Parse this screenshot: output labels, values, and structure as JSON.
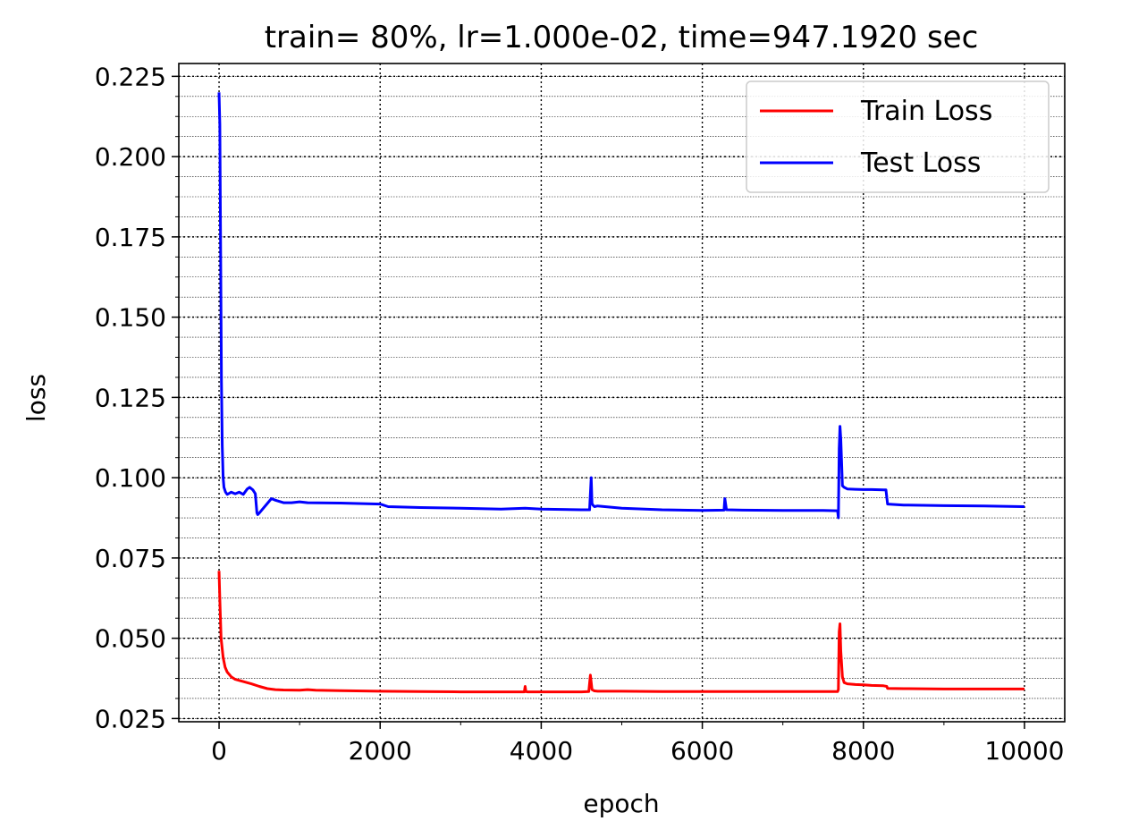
{
  "chart_data": {
    "type": "line",
    "title": "train= 80%, lr=1.000e-02, time=947.1920 sec",
    "xlabel": "epoch",
    "ylabel": "loss",
    "xlim": [
      -500,
      10500
    ],
    "ylim": [
      0.024,
      0.229
    ],
    "x_ticks": [
      0,
      2000,
      4000,
      6000,
      8000,
      10000
    ],
    "x_tick_labels": [
      "0",
      "2000",
      "4000",
      "6000",
      "8000",
      "10000"
    ],
    "y_ticks": [
      0.025,
      0.05,
      0.075,
      0.1,
      0.125,
      0.15,
      0.175,
      0.2,
      0.225
    ],
    "y_tick_labels": [
      "0.025",
      "0.050",
      "0.075",
      "0.100",
      "0.125",
      "0.150",
      "0.175",
      "0.200",
      "0.225"
    ],
    "grid": true,
    "minor_grid": true,
    "legend_position": "top-right",
    "series": [
      {
        "name": "Train Loss",
        "color": "#ff0000",
        "x": [
          0,
          10,
          25,
          50,
          75,
          100,
          150,
          200,
          300,
          400,
          500,
          600,
          700,
          800,
          1000,
          1100,
          1200,
          1500,
          2000,
          2500,
          3000,
          3500,
          3790,
          3800,
          3810,
          3830,
          4000,
          4500,
          4590,
          4610,
          4630,
          4660,
          4700,
          5000,
          5500,
          6000,
          6500,
          7000,
          7500,
          7680,
          7690,
          7700,
          7710,
          7720,
          7740,
          7760,
          7800,
          7900,
          8000,
          8100,
          8250,
          8290,
          8300,
          8500,
          9000,
          9500,
          10000
        ],
        "y": [
          0.071,
          0.062,
          0.05,
          0.044,
          0.041,
          0.0395,
          0.038,
          0.0372,
          0.0365,
          0.0358,
          0.035,
          0.0343,
          0.034,
          0.0339,
          0.0338,
          0.034,
          0.0338,
          0.0337,
          0.0335,
          0.0334,
          0.0333,
          0.0333,
          0.0333,
          0.035,
          0.0334,
          0.0333,
          0.0333,
          0.0333,
          0.0334,
          0.0385,
          0.034,
          0.0336,
          0.0335,
          0.0335,
          0.0334,
          0.0334,
          0.0334,
          0.0334,
          0.0334,
          0.0334,
          0.034,
          0.052,
          0.0545,
          0.046,
          0.038,
          0.0362,
          0.0358,
          0.0356,
          0.0355,
          0.0353,
          0.0352,
          0.035,
          0.0344,
          0.0343,
          0.0342,
          0.0342,
          0.0342
        ]
      },
      {
        "name": "Test Loss",
        "color": "#0000ff",
        "x": [
          0,
          10,
          20,
          30,
          40,
          50,
          60,
          80,
          100,
          130,
          150,
          200,
          250,
          300,
          350,
          380,
          420,
          450,
          470,
          480,
          500,
          550,
          600,
          650,
          700,
          800,
          900,
          1000,
          1100,
          1500,
          2000,
          2100,
          2500,
          3000,
          3500,
          3800,
          4000,
          4500,
          4600,
          4620,
          4630,
          4640,
          4660,
          4700,
          5000,
          5500,
          6000,
          6270,
          6280,
          6300,
          6500,
          7000,
          7500,
          7680,
          7690,
          7700,
          7710,
          7720,
          7740,
          7760,
          7800,
          7900,
          8000,
          8100,
          8250,
          8280,
          8300,
          8500,
          9000,
          9500,
          10000
        ],
        "y": [
          0.22,
          0.21,
          0.17,
          0.13,
          0.11,
          0.1,
          0.097,
          0.0955,
          0.0948,
          0.0952,
          0.0955,
          0.095,
          0.0955,
          0.0948,
          0.0965,
          0.097,
          0.0962,
          0.095,
          0.089,
          0.0885,
          0.089,
          0.0905,
          0.092,
          0.0935,
          0.093,
          0.0922,
          0.0922,
          0.0925,
          0.0922,
          0.0921,
          0.0918,
          0.091,
          0.0907,
          0.0905,
          0.0902,
          0.0905,
          0.0902,
          0.09,
          0.09,
          0.1,
          0.092,
          0.0915,
          0.091,
          0.0912,
          0.0905,
          0.09,
          0.0898,
          0.0899,
          0.0935,
          0.09,
          0.0899,
          0.0898,
          0.0898,
          0.0897,
          0.0875,
          0.109,
          0.116,
          0.112,
          0.0975,
          0.097,
          0.0965,
          0.0964,
          0.0963,
          0.0963,
          0.0962,
          0.0962,
          0.0918,
          0.0915,
          0.0913,
          0.0912,
          0.091
        ]
      }
    ]
  }
}
